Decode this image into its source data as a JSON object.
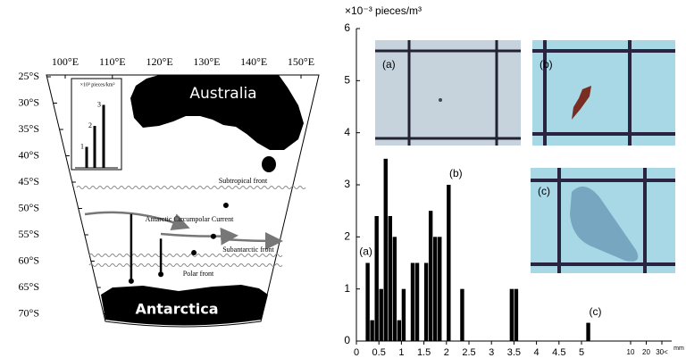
{
  "map": {
    "lon_ticks": [
      {
        "value": 100,
        "label": "100°E"
      },
      {
        "value": 110,
        "label": "110°E"
      },
      {
        "value": 120,
        "label": "120°E"
      },
      {
        "value": 130,
        "label": "130°E"
      },
      {
        "value": 140,
        "label": "140°E"
      },
      {
        "value": 150,
        "label": "150°E"
      }
    ],
    "lat_ticks": [
      {
        "value": 25,
        "label": "25°S"
      },
      {
        "value": 30,
        "label": "30°S"
      },
      {
        "value": 35,
        "label": "35°S"
      },
      {
        "value": 40,
        "label": "40°S"
      },
      {
        "value": 45,
        "label": "45°S"
      },
      {
        "value": 50,
        "label": "50°S"
      },
      {
        "value": 55,
        "label": "55°S"
      },
      {
        "value": 60,
        "label": "60°S"
      },
      {
        "value": 65,
        "label": "65°S"
      },
      {
        "value": 70,
        "label": "70°S"
      }
    ],
    "labels": {
      "australia": "Australia",
      "antarctica": "Antarctica",
      "subtropical_front": "Subtropical front",
      "acc": "Antarctic Circumpolar Current",
      "subantarctic_front": "Subantarctic front",
      "polar_front": "Polar front"
    },
    "inset": {
      "unit": "×10³ pieces/km²",
      "yticks": [
        1,
        2,
        3
      ],
      "values": [
        1,
        2,
        3
      ]
    },
    "stations": [
      {
        "lon": 107.9,
        "lat": 63.8,
        "value": 3.2
      },
      {
        "lon": 117.8,
        "lat": 62.5,
        "value": 1.7
      },
      {
        "lon": 136.7,
        "lat": 49.4,
        "value": 0
      },
      {
        "lon": 133.9,
        "lat": 55.3,
        "value": 0
      },
      {
        "lon": 128.3,
        "lat": 58.4,
        "value": 0
      }
    ]
  },
  "chart_data": {
    "type": "bar",
    "y_label": "×10⁻³ pieces/m³",
    "x_unit": "mm",
    "x": [
      0.25,
      0.35,
      0.45,
      0.55,
      0.65,
      0.75,
      0.85,
      0.95,
      1.05,
      1.25,
      1.35,
      1.55,
      1.65,
      1.75,
      1.85,
      2.05,
      2.35,
      3.45,
      3.55,
      5.15
    ],
    "values": [
      1.5,
      0.4,
      2.4,
      1.0,
      3.5,
      2.4,
      2.0,
      0.4,
      1.0,
      1.5,
      1.5,
      1.5,
      2.5,
      2.0,
      2.0,
      3.0,
      1.0,
      1.0,
      1.0,
      0.35
    ],
    "color": "#000000",
    "annotations": [
      "(a)",
      "(b)",
      "(c)"
    ],
    "photos": [
      "(a)",
      "(b)",
      "(c)"
    ],
    "xlim": [
      0,
      5.5
    ],
    "ylim": [
      0,
      6
    ],
    "yticks": [
      0,
      1,
      2,
      3,
      4,
      5,
      6
    ],
    "xticks": [
      0,
      0.5,
      1,
      1.5,
      2,
      2.5,
      3,
      3.5,
      4,
      4.5,
      5,
      10,
      20,
      {
        "value": 30,
        "label": "30<"
      }
    ]
  }
}
